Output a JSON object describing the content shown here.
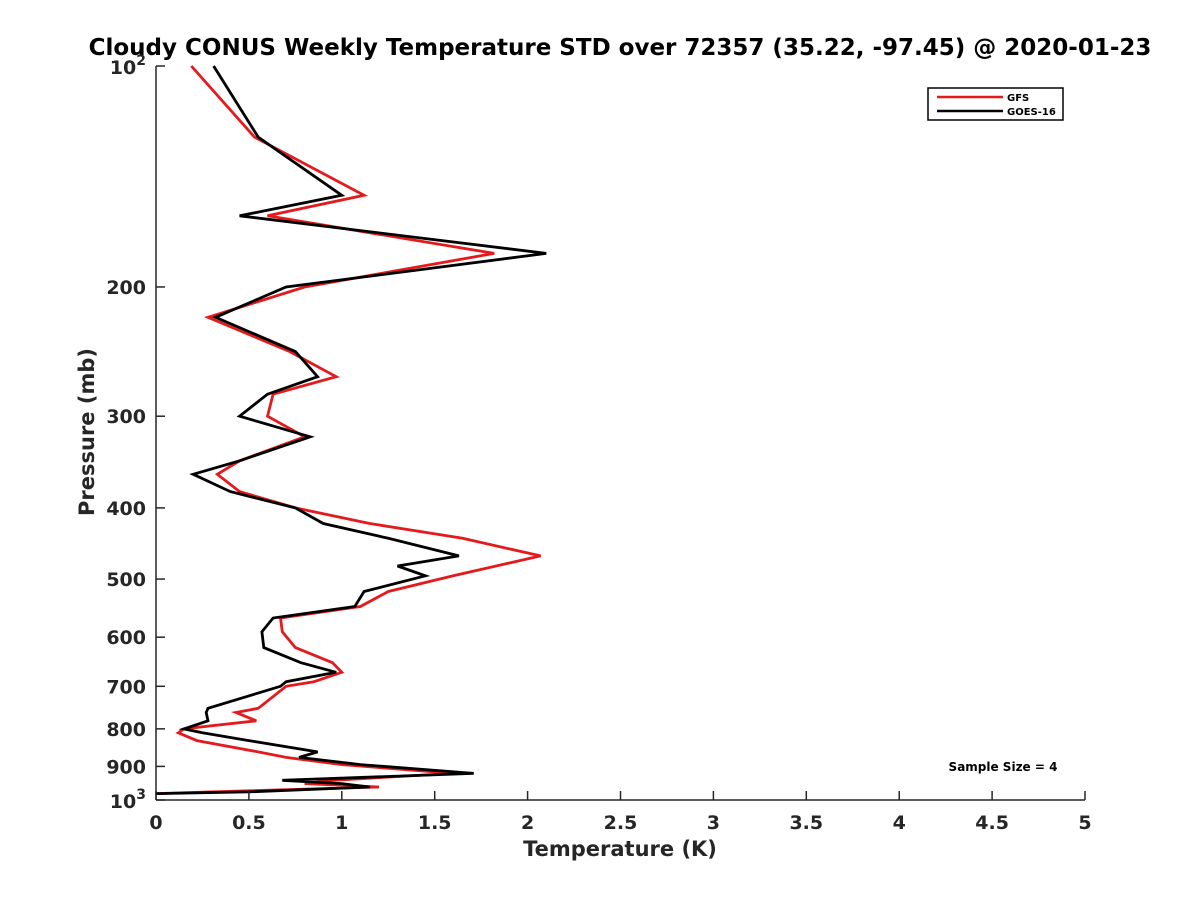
{
  "chart_data": {
    "type": "line",
    "title": "Cloudy CONUS Weekly Temperature STD over 72357 (35.22, -97.45) @ 2020-01-23",
    "xlabel": "Temperature (K)",
    "ylabel": "Pressure (mb)",
    "xlim": [
      0,
      5
    ],
    "ylim": [
      100,
      1000
    ],
    "yscale": "log",
    "y_reversed": true,
    "x_ticks": [
      "0",
      "0.5",
      "1",
      "1.5",
      "2",
      "2.5",
      "3",
      "3.5",
      "4",
      "4.5",
      "5"
    ],
    "y_ticks": [
      {
        "value": 100,
        "base": "10",
        "exp": "2"
      },
      {
        "value": 200,
        "label": "200"
      },
      {
        "value": 300,
        "label": "300"
      },
      {
        "value": 400,
        "label": "400"
      },
      {
        "value": 500,
        "label": "500"
      },
      {
        "value": 600,
        "label": "600"
      },
      {
        "value": 700,
        "label": "700"
      },
      {
        "value": 800,
        "label": "800"
      },
      {
        "value": 900,
        "label": "900"
      },
      {
        "value": 1000,
        "base": "10",
        "exp": "3"
      }
    ],
    "grid": false,
    "legend_position": "top-right",
    "annotation": "Sample Size = 4",
    "series": [
      {
        "name": "GFS",
        "color": "#e41a1c",
        "points": [
          [
            0.19,
            100
          ],
          [
            0.53,
            125
          ],
          [
            1.12,
            150
          ],
          [
            0.6,
            160
          ],
          [
            1.82,
            180
          ],
          [
            0.8,
            200
          ],
          [
            0.28,
            220
          ],
          [
            0.72,
            245
          ],
          [
            0.97,
            265
          ],
          [
            0.63,
            280
          ],
          [
            0.6,
            300
          ],
          [
            0.8,
            320
          ],
          [
            0.45,
            345
          ],
          [
            0.33,
            360
          ],
          [
            0.45,
            380
          ],
          [
            0.75,
            400
          ],
          [
            1.15,
            420
          ],
          [
            1.65,
            440
          ],
          [
            2.07,
            465
          ],
          [
            1.6,
            495
          ],
          [
            1.25,
            520
          ],
          [
            1.1,
            545
          ],
          [
            0.67,
            565
          ],
          [
            0.68,
            590
          ],
          [
            0.75,
            620
          ],
          [
            0.95,
            650
          ],
          [
            1.0,
            670
          ],
          [
            0.85,
            690
          ],
          [
            0.7,
            700
          ],
          [
            0.55,
            750
          ],
          [
            0.43,
            760
          ],
          [
            0.54,
            780
          ],
          [
            0.15,
            800
          ],
          [
            0.12,
            810
          ],
          [
            0.22,
            830
          ],
          [
            0.55,
            860
          ],
          [
            0.7,
            875
          ],
          [
            1.0,
            895
          ],
          [
            1.6,
            920
          ],
          [
            0.95,
            940
          ],
          [
            0.8,
            950
          ],
          [
            1.2,
            960
          ],
          [
            0.3,
            975
          ],
          [
            0.0,
            980
          ]
        ]
      },
      {
        "name": "GOES-16",
        "color": "#000000",
        "points": [
          [
            0.31,
            100
          ],
          [
            0.55,
            125
          ],
          [
            1.0,
            150
          ],
          [
            0.45,
            160
          ],
          [
            2.1,
            180
          ],
          [
            0.7,
            200
          ],
          [
            0.32,
            220
          ],
          [
            0.75,
            245
          ],
          [
            0.87,
            265
          ],
          [
            0.6,
            280
          ],
          [
            0.45,
            300
          ],
          [
            0.83,
            320
          ],
          [
            0.45,
            345
          ],
          [
            0.2,
            360
          ],
          [
            0.4,
            380
          ],
          [
            0.75,
            400
          ],
          [
            0.9,
            420
          ],
          [
            1.25,
            440
          ],
          [
            1.63,
            465
          ],
          [
            1.3,
            480
          ],
          [
            1.45,
            495
          ],
          [
            1.12,
            520
          ],
          [
            1.07,
            545
          ],
          [
            0.63,
            565
          ],
          [
            0.57,
            590
          ],
          [
            0.58,
            620
          ],
          [
            0.78,
            650
          ],
          [
            0.97,
            670
          ],
          [
            0.7,
            690
          ],
          [
            0.67,
            700
          ],
          [
            0.28,
            750
          ],
          [
            0.27,
            760
          ],
          [
            0.28,
            780
          ],
          [
            0.15,
            800
          ],
          [
            0.25,
            810
          ],
          [
            0.5,
            830
          ],
          [
            0.87,
            860
          ],
          [
            0.77,
            875
          ],
          [
            1.1,
            895
          ],
          [
            1.71,
            920
          ],
          [
            0.68,
            940
          ],
          [
            1.0,
            950
          ],
          [
            1.15,
            960
          ],
          [
            0.5,
            975
          ],
          [
            0.0,
            980
          ]
        ]
      }
    ]
  }
}
